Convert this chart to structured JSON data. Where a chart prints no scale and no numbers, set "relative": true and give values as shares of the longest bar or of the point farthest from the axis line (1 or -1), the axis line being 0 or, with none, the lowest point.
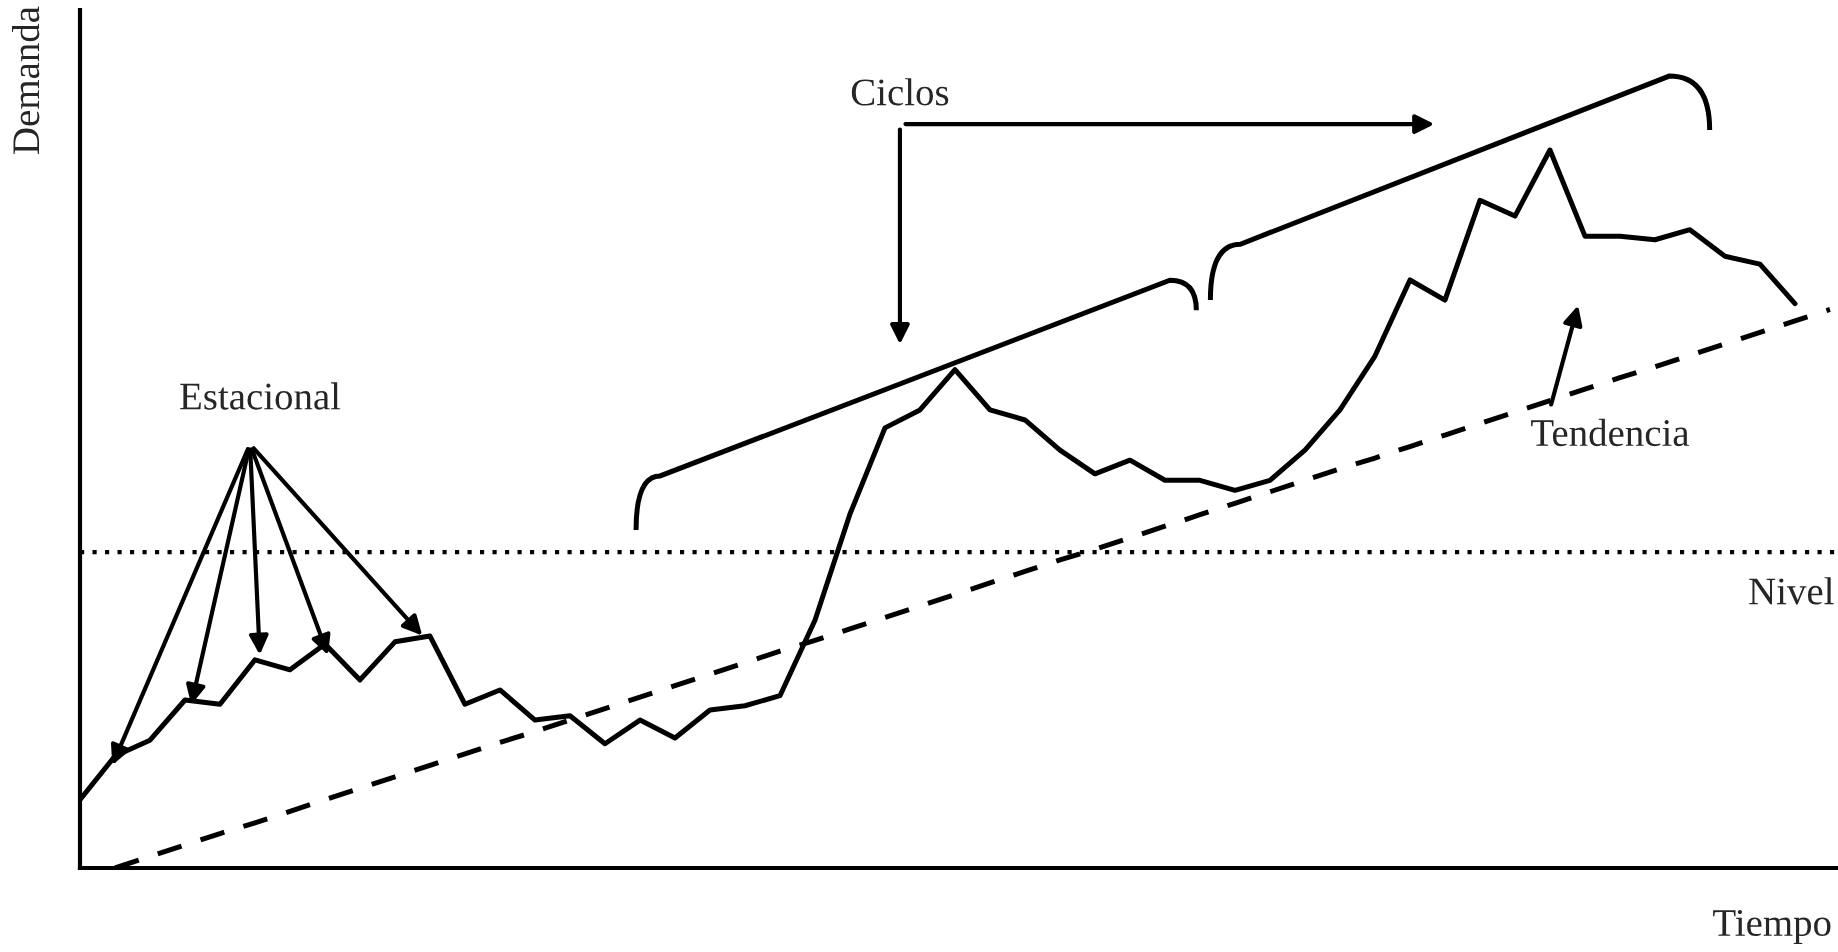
{
  "chart_data": {
    "type": "line",
    "relative": true,
    "xlabel": "Tiempo",
    "ylabel": "Demanda",
    "categories": [
      null,
      null,
      null,
      null,
      null,
      null,
      null,
      null,
      null,
      null,
      null,
      null,
      null,
      null,
      null,
      null,
      null,
      null,
      null,
      null,
      null,
      null,
      null,
      null,
      null,
      null,
      null,
      null,
      null,
      null,
      null,
      null,
      null,
      null,
      null,
      null,
      null,
      null,
      null,
      null,
      null,
      null,
      null,
      null,
      null,
      null,
      null,
      null,
      null,
      null,
      null
    ],
    "series": [
      {
        "color": "#000000",
        "line_style": "solid",
        "values": [
          0.095,
          0.156,
          0.178,
          0.234,
          0.228,
          0.29,
          0.276,
          0.312,
          0.262,
          0.315,
          0.323,
          0.228,
          0.248,
          0.206,
          0.212,
          0.173,
          0.206,
          0.181,
          0.22,
          0.226,
          0.24,
          0.345,
          0.493,
          0.613,
          0.638,
          0.694,
          0.638,
          0.624,
          0.582,
          0.549,
          0.568,
          0.54,
          0.54,
          0.526,
          0.54,
          0.582,
          0.638,
          0.713,
          0.819,
          0.791,
          0.93,
          0.908,
          1.0,
          0.88,
          0.88,
          0.875,
          0.889,
          0.852,
          0.841,
          0.786,
          null
        ]
      },
      {
        "color": "#000000",
        "line_style": "dashed",
        "values": [
          null,
          0,
          0.016,
          0.032,
          0.048,
          0.063,
          0.079,
          0.095,
          0.111,
          0.127,
          0.143,
          0.159,
          0.175,
          0.19,
          0.206,
          0.222,
          0.238,
          0.254,
          0.27,
          0.286,
          0.302,
          0.317,
          0.333,
          0.349,
          0.365,
          0.381,
          0.397,
          0.413,
          0.429,
          0.444,
          0.46,
          0.476,
          0.492,
          0.508,
          0.524,
          0.54,
          0.556,
          0.571,
          0.587,
          0.603,
          0.619,
          0.635,
          0.651,
          0.667,
          0.683,
          0.698,
          0.714,
          0.73,
          0.746,
          0.762,
          0.778
        ]
      }
    ],
    "ref_lines": [
      {
        "axis": "y",
        "value": 0.44,
        "label": "Nivel",
        "color": "#000000",
        "line_style": "dotted"
      }
    ],
    "annotations": [
      "Estacional",
      "Ciclos",
      "Tendencia"
    ]
  }
}
